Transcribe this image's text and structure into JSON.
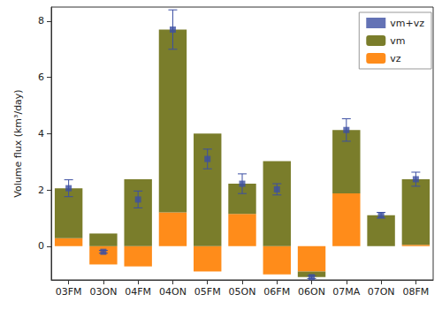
{
  "chart_data": {
    "type": "bar",
    "stacked": true,
    "y_label": "Volume flux (km³/day)",
    "categories": [
      "03FM",
      "03ON",
      "04FM",
      "04ON",
      "05FM",
      "05ON",
      "06FM",
      "06ON",
      "07MA",
      "07ON",
      "08FM"
    ],
    "series": [
      {
        "name": "vm+vz",
        "type": "scatter",
        "marker": "square",
        "color": "#3c4fa3",
        "values": [
          2.06,
          -0.2,
          1.66,
          7.7,
          3.1,
          2.22,
          2.02,
          -1.1,
          4.13,
          1.1,
          2.38
        ],
        "errors": [
          0.3,
          0.05,
          0.3,
          0.7,
          0.35,
          0.35,
          0.2,
          0.05,
          0.4,
          0.1,
          0.25
        ]
      },
      {
        "name": "vm",
        "type": "bar",
        "color": "#7a7d2b",
        "values": [
          1.78,
          0.45,
          2.38,
          6.5,
          4.0,
          1.07,
          3.02,
          -0.2,
          2.25,
          1.1,
          2.33
        ]
      },
      {
        "name": "vz",
        "type": "bar",
        "color": "#ff8c1a",
        "values": [
          0.28,
          -0.65,
          -0.72,
          1.2,
          -0.9,
          1.15,
          -1.0,
          -0.9,
          1.88,
          0,
          0.05
        ]
      }
    ],
    "ylim": [
      -1.2,
      8.5
    ],
    "yticks": [
      0,
      2,
      4,
      6,
      8
    ],
    "legend": "upper right",
    "grid": false
  }
}
